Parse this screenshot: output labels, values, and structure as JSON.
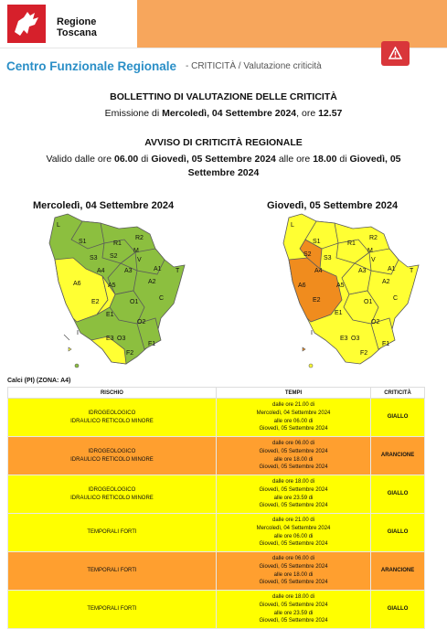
{
  "header": {
    "org_name": "Regione Toscana",
    "alert_icon": "warning-triangle-icon"
  },
  "breadcrumb": {
    "title": "Centro Funzionale Regionale",
    "path": "- CRITICITÀ / Valutazione criticità"
  },
  "bulletin": {
    "heading": "BOLLETTINO DI VALUTAZIONE DELLE CRITICITÀ",
    "emission_prefix": "Emissione di",
    "emission_date": "Mercoledì, 04 Settembre 2024",
    "emission_time_prefix": ", ore",
    "emission_time": "12.57"
  },
  "avviso": {
    "heading": "AVVISO DI CRITICITÀ REGIONALE",
    "valid_prefix": "Valido dalle ore",
    "valid_from_time": "06.00",
    "di1": "di",
    "valid_from_date": "Giovedì, 05 Settembre 2024",
    "valid_mid": "alle ore",
    "valid_to_time": "18.00",
    "di2": "di",
    "valid_to_date_a": "Giovedì, 05",
    "valid_to_date_b": "Settembre 2024"
  },
  "maps": {
    "left_title": "Mercoledì, 04 Settembre 2024",
    "right_title": "Giovedì, 05 Settembre 2024",
    "labels": [
      "L",
      "S1",
      "R2",
      "R1",
      "M",
      "S2",
      "S3",
      "V",
      "A4",
      "A3",
      "A1",
      "T",
      "A6",
      "A5",
      "A2",
      "E2",
      "O1",
      "C",
      "E1",
      "O2",
      "I",
      "E3",
      "O3",
      "F2",
      "F1"
    ],
    "colors": {
      "green": "#8cbf3f",
      "yellow": "#ffff33",
      "orange": "#f08c1e",
      "outline": "#5a5a5a"
    }
  },
  "zone": {
    "title": "Calci (PI) (ZONA: A4)"
  },
  "table": {
    "headers": {
      "rischio": "RISCHIO",
      "tempi": "TEMPI",
      "criticita": "CRITICITÀ"
    },
    "rows": [
      {
        "rischio_1": "IDROGEOLOGICO",
        "rischio_2": "IDRAULICO RETICOLO MINORE",
        "t1": "dalle ore 21.00 di",
        "t2": "Mercoledì, 04 Settembre 2024",
        "t3": "alle ore 06.00 di",
        "t4": "Giovedì, 05 Settembre 2024",
        "crit": "GIALLO",
        "level": "giallo"
      },
      {
        "rischio_1": "IDROGEOLOGICO",
        "rischio_2": "IDRAULICO RETICOLO MINORE",
        "t1": "dalle ore 06.00 di",
        "t2": "Giovedì, 05 Settembre 2024",
        "t3": "alle ore 18.00 di",
        "t4": "Giovedì, 05 Settembre 2024",
        "crit": "ARANCIONE",
        "level": "arancione"
      },
      {
        "rischio_1": "IDROGEOLOGICO",
        "rischio_2": "IDRAULICO RETICOLO MINORE",
        "t1": "dalle ore 18.00 di",
        "t2": "Giovedì, 05 Settembre 2024",
        "t3": "alle ore 23.59 di",
        "t4": "Giovedì, 05 Settembre 2024",
        "crit": "GIALLO",
        "level": "giallo"
      },
      {
        "rischio_1": "TEMPORALI FORTI",
        "rischio_2": "",
        "t1": "dalle ore 21.00 di",
        "t2": "Mercoledì, 04 Settembre 2024",
        "t3": "alle ore 06.00 di",
        "t4": "Giovedì, 05 Settembre 2024",
        "crit": "GIALLO",
        "level": "giallo"
      },
      {
        "rischio_1": "TEMPORALI FORTI",
        "rischio_2": "",
        "t1": "dalle ore 06.00 di",
        "t2": "Giovedì, 05 Settembre 2024",
        "t3": "alle ore 18.00 di",
        "t4": "Giovedì, 05 Settembre 2024",
        "crit": "ARANCIONE",
        "level": "arancione"
      },
      {
        "rischio_1": "TEMPORALI FORTI",
        "rischio_2": "",
        "t1": "dalle ore 18.00 di",
        "t2": "Giovedì, 05 Settembre 2024",
        "t3": "alle ore 23.59 di",
        "t4": "Giovedì, 05 Settembre 2024",
        "crit": "GIALLO",
        "level": "giallo"
      }
    ]
  }
}
